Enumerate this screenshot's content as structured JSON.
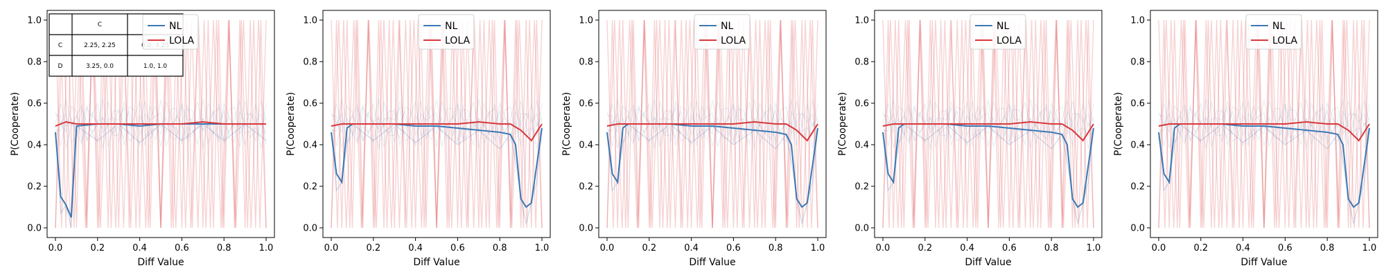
{
  "chart_data": [
    {
      "type": "line",
      "xlabel": "Diff Value",
      "ylabel": "P(Cooperate)",
      "xlim": [
        0.0,
        1.0
      ],
      "ylim": [
        0.0,
        1.0
      ],
      "x_ticks": [
        "0.0",
        "0.2",
        "0.4",
        "0.6",
        "0.8",
        "1.0"
      ],
      "y_ticks": [
        "0.0",
        "0.2",
        "0.4",
        "0.6",
        "0.8",
        "1.0"
      ],
      "legend": [
        "NL",
        "LOLA"
      ],
      "legend_position": "top-center",
      "payoff_table": {
        "col_header": "C",
        "rows": [
          {
            "label": "C",
            "values": [
              "2.25, 2.25",
              "0.0, 3.25"
            ]
          },
          {
            "label": "D",
            "values": [
              "3.25, 0.0",
              "1.0, 1.0"
            ]
          }
        ]
      },
      "series": [
        {
          "name": "NL",
          "color": "#3a78b4",
          "x": [
            0.0,
            0.025,
            0.05,
            0.075,
            0.1,
            0.2,
            0.3,
            0.4,
            0.5,
            0.6,
            0.7,
            0.8,
            0.9,
            1.0
          ],
          "values": [
            0.46,
            0.15,
            0.11,
            0.05,
            0.49,
            0.5,
            0.5,
            0.49,
            0.5,
            0.5,
            0.5,
            0.5,
            0.5,
            0.5
          ]
        },
        {
          "name": "LOLA",
          "color": "#d9363a",
          "x": [
            0.0,
            0.05,
            0.1,
            0.2,
            0.3,
            0.4,
            0.5,
            0.6,
            0.7,
            0.8,
            0.9,
            1.0
          ],
          "values": [
            0.49,
            0.51,
            0.5,
            0.5,
            0.5,
            0.5,
            0.5,
            0.5,
            0.51,
            0.5,
            0.5,
            0.5
          ]
        }
      ]
    },
    {
      "type": "line",
      "xlabel": "Diff Value",
      "ylabel": "P(Cooperate)",
      "xlim": [
        0.0,
        1.0
      ],
      "ylim": [
        0.0,
        1.0
      ],
      "x_ticks": [
        "0.0",
        "0.2",
        "0.4",
        "0.6",
        "0.8",
        "1.0"
      ],
      "y_ticks": [
        "0.0",
        "0.2",
        "0.4",
        "0.6",
        "0.8",
        "1.0"
      ],
      "legend": [
        "NL",
        "LOLA"
      ],
      "legend_position": "top-center",
      "series": [
        {
          "name": "NL",
          "color": "#3a78b4",
          "x": [
            0.0,
            0.025,
            0.05,
            0.075,
            0.1,
            0.2,
            0.3,
            0.4,
            0.5,
            0.6,
            0.7,
            0.8,
            0.85,
            0.875,
            0.9,
            0.925,
            0.95,
            0.975,
            1.0
          ],
          "values": [
            0.46,
            0.26,
            0.22,
            0.48,
            0.5,
            0.5,
            0.5,
            0.49,
            0.49,
            0.48,
            0.47,
            0.46,
            0.45,
            0.4,
            0.14,
            0.1,
            0.12,
            0.3,
            0.48
          ]
        },
        {
          "name": "LOLA",
          "color": "#d9363a",
          "x": [
            0.0,
            0.05,
            0.1,
            0.2,
            0.3,
            0.4,
            0.5,
            0.6,
            0.7,
            0.8,
            0.85,
            0.9,
            0.95,
            1.0
          ],
          "values": [
            0.49,
            0.5,
            0.5,
            0.5,
            0.5,
            0.5,
            0.5,
            0.5,
            0.51,
            0.5,
            0.5,
            0.47,
            0.42,
            0.5
          ]
        }
      ]
    },
    {
      "type": "line",
      "xlabel": "Diff Value",
      "ylabel": "P(Cooperate)",
      "xlim": [
        0.0,
        1.0
      ],
      "ylim": [
        0.0,
        1.0
      ],
      "x_ticks": [
        "0.0",
        "0.2",
        "0.4",
        "0.6",
        "0.8",
        "1.0"
      ],
      "y_ticks": [
        "0.0",
        "0.2",
        "0.4",
        "0.6",
        "0.8",
        "1.0"
      ],
      "legend": [
        "NL",
        "LOLA"
      ],
      "legend_position": "top-center",
      "series": [
        {
          "name": "NL",
          "color": "#3a78b4",
          "x": [
            0.0,
            0.025,
            0.05,
            0.075,
            0.1,
            0.2,
            0.3,
            0.4,
            0.5,
            0.6,
            0.7,
            0.8,
            0.85,
            0.875,
            0.9,
            0.925,
            0.95,
            0.975,
            1.0
          ],
          "values": [
            0.46,
            0.26,
            0.22,
            0.48,
            0.5,
            0.5,
            0.5,
            0.49,
            0.49,
            0.48,
            0.47,
            0.46,
            0.45,
            0.4,
            0.14,
            0.1,
            0.12,
            0.3,
            0.48
          ]
        },
        {
          "name": "LOLA",
          "color": "#d9363a",
          "x": [
            0.0,
            0.05,
            0.1,
            0.2,
            0.3,
            0.4,
            0.5,
            0.6,
            0.7,
            0.8,
            0.85,
            0.9,
            0.95,
            1.0
          ],
          "values": [
            0.49,
            0.5,
            0.5,
            0.5,
            0.5,
            0.5,
            0.5,
            0.5,
            0.51,
            0.5,
            0.5,
            0.47,
            0.42,
            0.5
          ]
        }
      ]
    },
    {
      "type": "line",
      "xlabel": "Diff Value",
      "ylabel": "P(Cooperate)",
      "xlim": [
        0.0,
        1.0
      ],
      "ylim": [
        0.0,
        1.0
      ],
      "x_ticks": [
        "0.0",
        "0.2",
        "0.4",
        "0.6",
        "0.8",
        "1.0"
      ],
      "y_ticks": [
        "0.0",
        "0.2",
        "0.4",
        "0.6",
        "0.8",
        "1.0"
      ],
      "legend": [
        "NL",
        "LOLA"
      ],
      "legend_position": "top-center",
      "series": [
        {
          "name": "NL",
          "color": "#3a78b4",
          "x": [
            0.0,
            0.025,
            0.05,
            0.075,
            0.1,
            0.2,
            0.3,
            0.4,
            0.5,
            0.6,
            0.7,
            0.8,
            0.85,
            0.875,
            0.9,
            0.925,
            0.95,
            0.975,
            1.0
          ],
          "values": [
            0.46,
            0.26,
            0.22,
            0.48,
            0.5,
            0.5,
            0.5,
            0.49,
            0.49,
            0.48,
            0.47,
            0.46,
            0.45,
            0.4,
            0.14,
            0.1,
            0.12,
            0.3,
            0.48
          ]
        },
        {
          "name": "LOLA",
          "color": "#d9363a",
          "x": [
            0.0,
            0.05,
            0.1,
            0.2,
            0.3,
            0.4,
            0.5,
            0.6,
            0.7,
            0.8,
            0.85,
            0.9,
            0.95,
            1.0
          ],
          "values": [
            0.49,
            0.5,
            0.5,
            0.5,
            0.5,
            0.5,
            0.5,
            0.5,
            0.51,
            0.5,
            0.5,
            0.47,
            0.42,
            0.5
          ]
        }
      ]
    },
    {
      "type": "line",
      "xlabel": "Diff Value",
      "ylabel": "P(Cooperate)",
      "xlim": [
        0.0,
        1.0
      ],
      "ylim": [
        0.0,
        1.0
      ],
      "x_ticks": [
        "0.0",
        "0.2",
        "0.4",
        "0.6",
        "0.8",
        "1.0"
      ],
      "y_ticks": [
        "0.0",
        "0.2",
        "0.4",
        "0.6",
        "0.8",
        "1.0"
      ],
      "legend": [
        "NL",
        "LOLA"
      ],
      "legend_position": "top-center",
      "series": [
        {
          "name": "NL",
          "color": "#3a78b4",
          "x": [
            0.0,
            0.025,
            0.05,
            0.075,
            0.1,
            0.2,
            0.3,
            0.4,
            0.5,
            0.6,
            0.7,
            0.8,
            0.85,
            0.875,
            0.9,
            0.925,
            0.95,
            0.975,
            1.0
          ],
          "values": [
            0.46,
            0.26,
            0.22,
            0.48,
            0.5,
            0.5,
            0.5,
            0.49,
            0.49,
            0.48,
            0.47,
            0.46,
            0.45,
            0.4,
            0.14,
            0.1,
            0.12,
            0.3,
            0.48
          ]
        },
        {
          "name": "LOLA",
          "color": "#d9363a",
          "x": [
            0.0,
            0.05,
            0.1,
            0.2,
            0.3,
            0.4,
            0.5,
            0.6,
            0.7,
            0.8,
            0.85,
            0.9,
            0.95,
            1.0
          ],
          "values": [
            0.49,
            0.5,
            0.5,
            0.5,
            0.5,
            0.5,
            0.5,
            0.5,
            0.51,
            0.5,
            0.5,
            0.47,
            0.42,
            0.5
          ]
        }
      ]
    }
  ]
}
